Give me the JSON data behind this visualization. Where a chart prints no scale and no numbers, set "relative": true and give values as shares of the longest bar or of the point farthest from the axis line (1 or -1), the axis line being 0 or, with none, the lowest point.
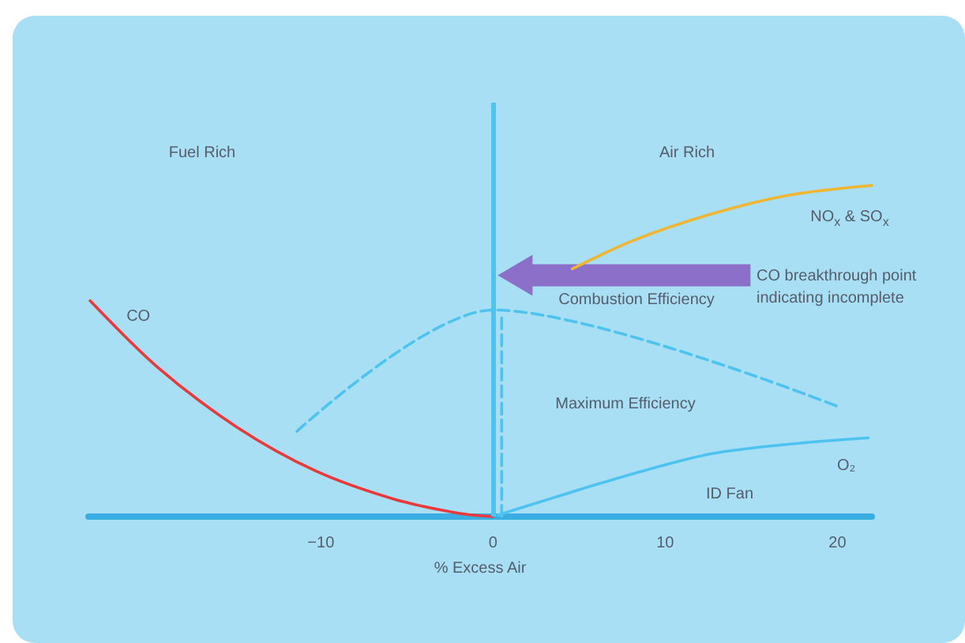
{
  "chart_data": {
    "type": "line",
    "xlabel": "% Excess Air",
    "relative": true,
    "xlim": [
      -23.5,
      22
    ],
    "xticks": [
      -10,
      0,
      10,
      20
    ],
    "grid": false,
    "legend": false,
    "marker": "none",
    "tick_labels": "x",
    "series": [
      {
        "name": "CO",
        "color": "#e8393b",
        "x": [
          -23.4,
          -19.5,
          -14.9,
          -10.3,
          -5.7,
          -2,
          0
        ],
        "values": [
          0.652,
          0.452,
          0.271,
          0.138,
          0.052,
          0.01,
          0
        ]
      },
      {
        "name": "NO$_{x}$ & SO$_{x}$",
        "color": "#f2b531",
        "x": [
          4.6,
          8.1,
          12.7,
          17.2,
          22
        ],
        "values": [
          0.748,
          0.833,
          0.914,
          0.971,
          1
        ]
      },
      {
        "name": "O₂",
        "color": "#4fc3f0",
        "x": [
          0.3,
          3.5,
          8.1,
          12.7,
          17.2,
          21.8
        ],
        "values": [
          0.005,
          0.057,
          0.129,
          0.19,
          0.219,
          0.238
        ]
      },
      {
        "color": "#4fc3f0",
        "line_style": "dashed",
        "x": [
          -11.4,
          0,
          20.2
        ],
        "values": [
          0.257,
          0.624,
          0.329
        ]
      },
      {
        "color": "#4fc3f0",
        "line_style": "dashed",
        "x": [
          0.5,
          0.5
        ],
        "values": [
          0,
          0.6
        ]
      }
    ],
    "ref_lines": [
      {
        "axis": "x",
        "value": 0,
        "color": "#4fc3f0",
        "line_style": "solid"
      }
    ],
    "annotations": [
      "Fuel Rich",
      "Air Rich",
      "CO breakthrough point\nindicating incomplete",
      "Combustion Efficiency",
      "Maximum Efficiency",
      "ID Fan"
    ]
  }
}
